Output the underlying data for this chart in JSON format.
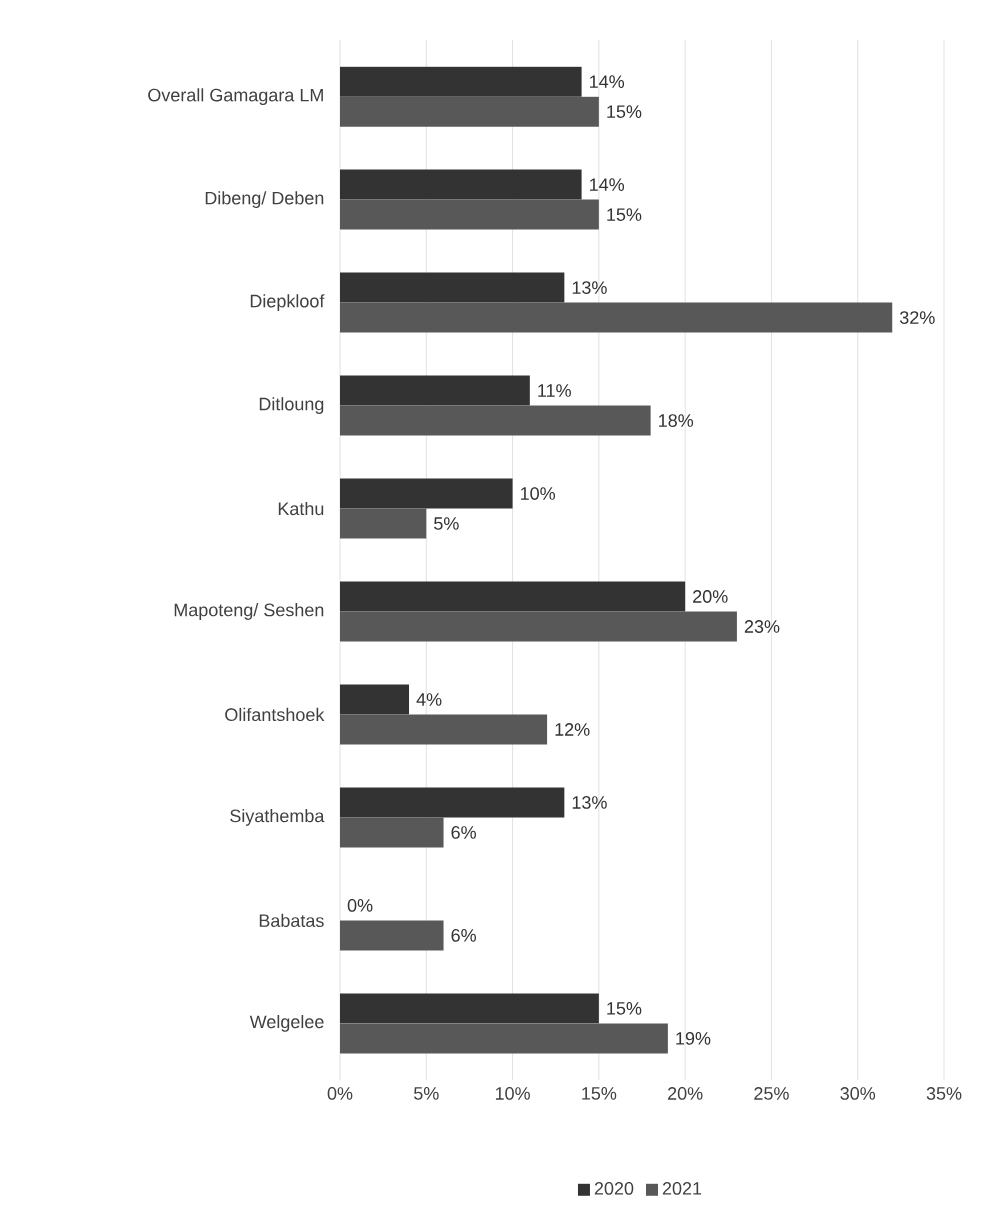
{
  "chart_data": {
    "type": "bar",
    "orientation": "horizontal",
    "categories": [
      "Overall Gamagara LM",
      "Dibeng/ Deben",
      "Diepkloof",
      "Ditloung",
      "Kathu",
      "Mapoteng/ Seshen",
      "Olifantshoek",
      "Siyathemba",
      "Babatas",
      "Welgelee"
    ],
    "series": [
      {
        "name": "2020",
        "color": "#333333",
        "values": [
          14,
          14,
          13,
          11,
          10,
          20,
          4,
          13,
          0,
          15
        ],
        "value_labels": [
          "14%",
          "14%",
          "13%",
          "11%",
          "10%",
          "20%",
          "4%",
          "13%",
          "0%",
          "15%"
        ]
      },
      {
        "name": "2021",
        "color": "#585858",
        "values": [
          15,
          15,
          32,
          18,
          5,
          23,
          12,
          6,
          6,
          19
        ],
        "value_labels": [
          "15%",
          "15%",
          "32%",
          "18%",
          "5%",
          "23%",
          "12%",
          "6%",
          "6%",
          "19%"
        ]
      }
    ],
    "xlim": [
      0,
      35
    ],
    "xticks": [
      {
        "value": 0,
        "label": "0%"
      },
      {
        "value": 5,
        "label": "5%"
      },
      {
        "value": 10,
        "label": "10%"
      },
      {
        "value": 15,
        "label": "15%"
      },
      {
        "value": 20,
        "label": "20%"
      },
      {
        "value": 25,
        "label": "25%"
      },
      {
        "value": 30,
        "label": "30%"
      },
      {
        "value": 35,
        "label": "35%"
      }
    ],
    "grid": "x",
    "legend": "bottom"
  }
}
